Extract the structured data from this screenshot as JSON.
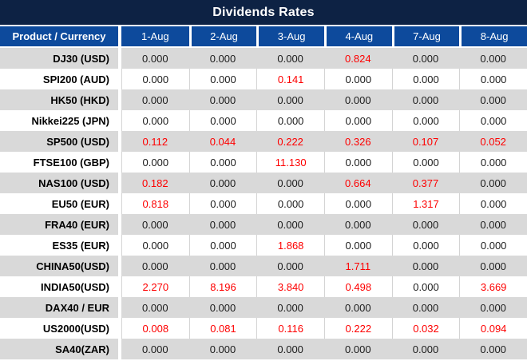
{
  "title": "Dividends Rates",
  "colors": {
    "title_bar_bg": "#0d2244",
    "header_bg": "#0d4a9c",
    "row_gray": "#d9d9d9",
    "row_white": "#ffffff",
    "value_zero": "#1c1c1c",
    "value_nonzero": "#fe0000"
  },
  "table": {
    "product_header": "Product / Currency",
    "date_headers": [
      "1-Aug",
      "2-Aug",
      "3-Aug",
      "4-Aug",
      "7-Aug",
      "8-Aug"
    ],
    "rows": [
      {
        "product": "DJ30 (USD)",
        "values": [
          "0.000",
          "0.000",
          "0.000",
          "0.824",
          "0.000",
          "0.000"
        ]
      },
      {
        "product": "SPI200 (AUD)",
        "values": [
          "0.000",
          "0.000",
          "0.141",
          "0.000",
          "0.000",
          "0.000"
        ]
      },
      {
        "product": "HK50 (HKD)",
        "values": [
          "0.000",
          "0.000",
          "0.000",
          "0.000",
          "0.000",
          "0.000"
        ]
      },
      {
        "product": "Nikkei225 (JPN)",
        "values": [
          "0.000",
          "0.000",
          "0.000",
          "0.000",
          "0.000",
          "0.000"
        ]
      },
      {
        "product": "SP500 (USD)",
        "values": [
          "0.112",
          "0.044",
          "0.222",
          "0.326",
          "0.107",
          "0.052"
        ]
      },
      {
        "product": "FTSE100 (GBP)",
        "values": [
          "0.000",
          "0.000",
          "11.130",
          "0.000",
          "0.000",
          "0.000"
        ]
      },
      {
        "product": "NAS100 (USD)",
        "values": [
          "0.182",
          "0.000",
          "0.000",
          "0.664",
          "0.377",
          "0.000"
        ]
      },
      {
        "product": "EU50 (EUR)",
        "values": [
          "0.818",
          "0.000",
          "0.000",
          "0.000",
          "1.317",
          "0.000"
        ]
      },
      {
        "product": "FRA40 (EUR)",
        "values": [
          "0.000",
          "0.000",
          "0.000",
          "0.000",
          "0.000",
          "0.000"
        ]
      },
      {
        "product": "ES35 (EUR)",
        "values": [
          "0.000",
          "0.000",
          "1.868",
          "0.000",
          "0.000",
          "0.000"
        ]
      },
      {
        "product": "CHINA50(USD)",
        "values": [
          "0.000",
          "0.000",
          "0.000",
          "1.711",
          "0.000",
          "0.000"
        ]
      },
      {
        "product": "INDIA50(USD)",
        "values": [
          "2.270",
          "8.196",
          "3.840",
          "0.498",
          "0.000",
          "3.669"
        ]
      },
      {
        "product": "DAX40 / EUR",
        "values": [
          "0.000",
          "0.000",
          "0.000",
          "0.000",
          "0.000",
          "0.000"
        ]
      },
      {
        "product": "US2000(USD)",
        "values": [
          "0.008",
          "0.081",
          "0.116",
          "0.222",
          "0.032",
          "0.094"
        ]
      },
      {
        "product": "SA40(ZAR)",
        "values": [
          "0.000",
          "0.000",
          "0.000",
          "0.000",
          "0.000",
          "0.000"
        ]
      }
    ]
  }
}
